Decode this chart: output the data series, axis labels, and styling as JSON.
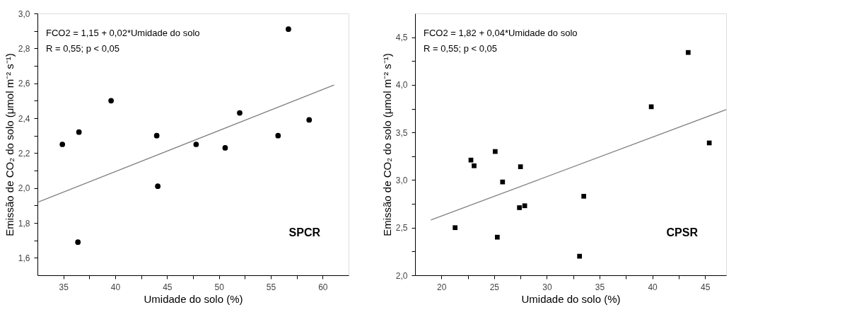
{
  "chart_data": [
    {
      "type": "scatter",
      "xlabel": "Umidade do solo (%)",
      "ylabel": "Emissão de CO₂ do solo (μmol m⁻² s⁻¹)",
      "xlim": [
        32.5,
        62.5
      ],
      "ylim": [
        1.5,
        3.0
      ],
      "xticks": [
        35,
        {
          "value": 37.5,
          "label": null
        },
        40,
        {
          "value": 42.5,
          "label": null
        },
        45,
        {
          "value": 47.5,
          "label": null
        },
        50,
        {
          "value": 52.5,
          "label": null
        },
        55,
        {
          "value": 57.5,
          "label": null
        },
        60
      ],
      "yticks": [
        {
          "value": 1.6,
          "label": "1,6"
        },
        {
          "value": 1.7,
          "label": null
        },
        {
          "value": 1.8,
          "label": "1,8"
        },
        {
          "value": 1.9,
          "label": null
        },
        {
          "value": 2.0,
          "label": "2,0"
        },
        {
          "value": 2.1,
          "label": null
        },
        {
          "value": 2.2,
          "label": "2,2"
        },
        {
          "value": 2.3,
          "label": null
        },
        {
          "value": 2.4,
          "label": "2,4"
        },
        {
          "value": 2.5,
          "label": null
        },
        {
          "value": 2.6,
          "label": "2,6"
        },
        {
          "value": 2.7,
          "label": null
        },
        {
          "value": 2.8,
          "label": "2,8"
        },
        {
          "value": 2.9,
          "label": null
        },
        {
          "value": 3.0,
          "label": "3,0"
        }
      ],
      "grid": false,
      "series": [
        {
          "type": "scatter",
          "marker": "circle",
          "color": "#000000",
          "x": [
            34.9,
            36.5,
            36.4,
            39.6,
            44.0,
            44.1,
            47.8,
            50.6,
            52.0,
            55.7,
            56.7,
            58.7
          ],
          "values": [
            2.25,
            2.32,
            1.69,
            2.5,
            2.3,
            2.01,
            2.25,
            2.23,
            2.43,
            2.3,
            2.91,
            2.39
          ]
        },
        {
          "type": "line",
          "line_style": "solid",
          "color": "#808080",
          "x": [
            32.6,
            61.1
          ],
          "values": [
            1.92,
            2.59
          ]
        }
      ],
      "annotations": [
        "FCO2 = 1,15 + 0,02*Umidade do solo",
        "R = 0,55; p < 0,05",
        "SPCR"
      ]
    },
    {
      "type": "scatter",
      "xlabel": "Umidade do solo (%)",
      "ylabel": "Emissão de CO₂ do solo (μmol m⁻² s⁻¹)",
      "xlim": [
        17.5,
        47
      ],
      "ylim": [
        2.0,
        4.75
      ],
      "xticks": [
        20,
        {
          "value": 22.5,
          "label": null
        },
        25,
        {
          "value": 27.5,
          "label": null
        },
        30,
        {
          "value": 32.5,
          "label": null
        },
        35,
        {
          "value": 37.5,
          "label": null
        },
        40,
        {
          "value": 42.5,
          "label": null
        },
        45
      ],
      "yticks": [
        {
          "value": 2.0,
          "label": "2,0"
        },
        {
          "value": 2.25,
          "label": null
        },
        {
          "value": 2.5,
          "label": "2,5"
        },
        {
          "value": 2.75,
          "label": null
        },
        {
          "value": 3.0,
          "label": "3,0"
        },
        {
          "value": 3.25,
          "label": null
        },
        {
          "value": 3.5,
          "label": "3,5"
        },
        {
          "value": 3.75,
          "label": null
        },
        {
          "value": 4.0,
          "label": "4,0"
        },
        {
          "value": 4.25,
          "label": null
        },
        {
          "value": 4.5,
          "label": "4,5"
        }
      ],
      "grid": false,
      "series": [
        {
          "type": "scatter",
          "marker": "square",
          "color": "#000000",
          "x": [
            21.3,
            22.8,
            23.1,
            25.1,
            25.3,
            25.8,
            27.4,
            27.5,
            27.9,
            33.1,
            33.5,
            39.9,
            43.4,
            45.4
          ],
          "values": [
            2.5,
            3.21,
            3.15,
            3.3,
            2.4,
            2.98,
            2.71,
            3.14,
            2.73,
            2.2,
            2.83,
            3.77,
            4.34,
            3.39
          ]
        },
        {
          "type": "line",
          "line_style": "solid",
          "color": "#808080",
          "x": [
            19.0,
            47.0
          ],
          "values": [
            2.58,
            3.74
          ]
        }
      ],
      "annotations": [
        "FCO2 = 1,82 + 0,04*Umidade do solo",
        "R = 0,55; p < 0,05",
        "CPSR"
      ]
    }
  ]
}
